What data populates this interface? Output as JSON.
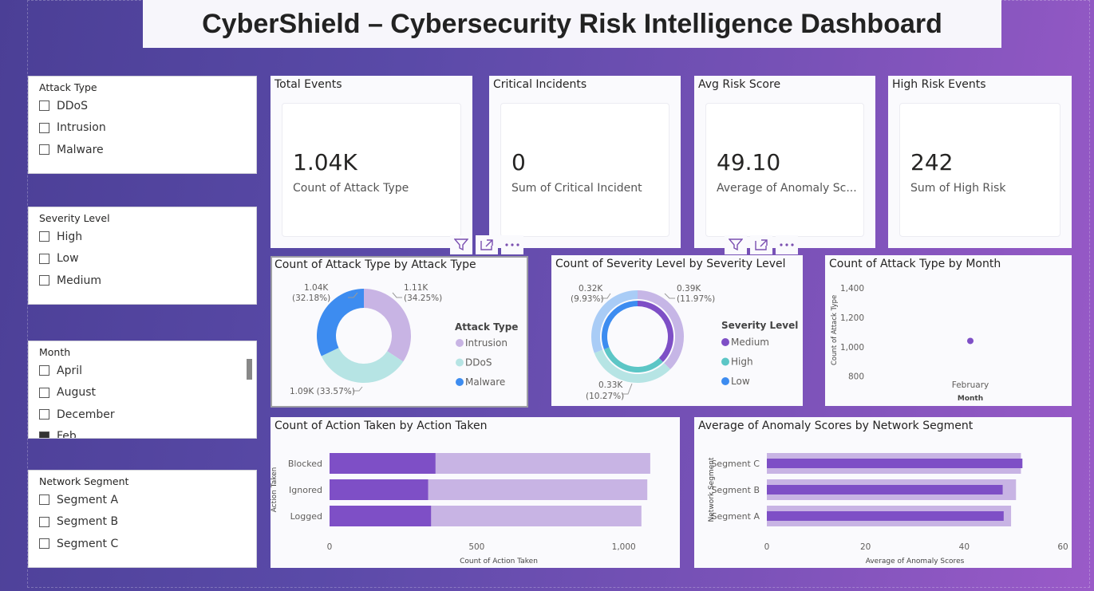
{
  "title": "CyberShield – Cybersecurity Risk Intelligence Dashboard",
  "slicers": [
    {
      "title": "Attack Type",
      "items": [
        "DDoS",
        "Intrusion",
        "Malware"
      ]
    },
    {
      "title": "Severity Level",
      "items": [
        "High",
        "Low",
        "Medium"
      ]
    },
    {
      "title": "Month",
      "items": [
        "April",
        "August",
        "December",
        "Feb"
      ]
    },
    {
      "title": "Network Segment",
      "items": [
        "Segment A",
        "Segment B",
        "Segment C"
      ]
    }
  ],
  "kpis": [
    {
      "title": "Total Events",
      "value": "1.04K",
      "label": "Count of Attack Type"
    },
    {
      "title": "Critical Incidents",
      "value": "0",
      "label": "Sum of Critical Incident"
    },
    {
      "title": "Avg Risk Score",
      "value": "49.10",
      "label": "Average of Anomaly Sc..."
    },
    {
      "title": "High Risk Events",
      "value": "242",
      "label": "Sum of High Risk"
    }
  ],
  "colors": {
    "purple_dark": "#7e4fc6",
    "purple_light": "#c8b4e4",
    "teal": "#b6e4e4",
    "teal_dark": "#5cc6c6",
    "blue": "#3d8cf0",
    "blue_light": "#a9ccf6",
    "medium": "#7e4fc6",
    "medium_light": "#c6b6e6"
  },
  "icons": [
    "filter-icon",
    "focus-mode-icon",
    "more-options-icon"
  ],
  "charts": {
    "attack_donut": {
      "title": "Count of Attack Type by Attack Type",
      "legend_title": "Attack Type",
      "chart_data": {
        "type": "pie",
        "categories": [
          "Intrusion",
          "DDoS",
          "Malware"
        ],
        "values": [
          1110,
          1090,
          1040
        ]
      },
      "labels": [
        "1.11K",
        "(34.25%)",
        "1.09K (33.57%)",
        "1.04K",
        "(32.18%)"
      ],
      "legend": [
        "Intrusion",
        "DDoS",
        "Malware"
      ]
    },
    "severity_donut": {
      "title": "Count of Severity Level by Severity Level",
      "legend_title": "Severity Level",
      "chart_data": {
        "type": "pie",
        "categories": [
          "Medium",
          "High",
          "Low"
        ],
        "values": [
          390,
          330,
          320
        ]
      },
      "labels": [
        "0.39K",
        "(11.97%)",
        "0.33K",
        "(10.27%)",
        "0.32K",
        "(9.93%)"
      ],
      "legend": [
        "Medium",
        "High",
        "Low"
      ]
    },
    "month_scatter": {
      "title": "Count of Attack Type by Month",
      "xlabel": "Month",
      "ylabel": "Count of Attack Type",
      "chart_data": {
        "type": "scatter",
        "x": [
          "February"
        ],
        "y": [
          1040
        ],
        "ylim": [
          700,
          1450
        ],
        "yticks": [
          800,
          1000,
          1200,
          1400
        ]
      },
      "ytick_labels": [
        "1,400",
        "1,200",
        "1,000",
        "800"
      ],
      "xtick": "February"
    },
    "action_bar": {
      "title": "Count of Action Taken by Action Taken",
      "xlabel": "Count of Action Taken",
      "ylabel": "Action Taken",
      "chart_data": {
        "type": "bar",
        "orientation": "horizontal",
        "categories": [
          "Blocked",
          "Ignored",
          "Logged"
        ],
        "series": [
          {
            "values": [
              1090,
              1080,
              1060
            ]
          },
          {
            "values": [
              360,
              335,
              345
            ]
          }
        ],
        "xlim": [
          0,
          1150
        ],
        "xticks": [
          0,
          500,
          1000
        ]
      },
      "xtick_labels": [
        "0",
        "500",
        "1,000"
      ]
    },
    "segment_bar": {
      "title": "Average of Anomaly Scores by Network Segment",
      "xlabel": "Average of Anomaly Scores",
      "ylabel": "Network Segment",
      "chart_data": {
        "type": "bar",
        "orientation": "horizontal",
        "categories": [
          "Segment C",
          "Segment B",
          "Segment A"
        ],
        "series": [
          {
            "values": [
              51.5,
              50.5,
              49.5
            ]
          },
          {
            "values": [
              51.8,
              47.8,
              48.0
            ]
          }
        ],
        "xlim": [
          0,
          60
        ],
        "xticks": [
          0,
          20,
          40,
          60
        ]
      },
      "xtick_labels": [
        "0",
        "20",
        "40",
        "60"
      ]
    }
  }
}
